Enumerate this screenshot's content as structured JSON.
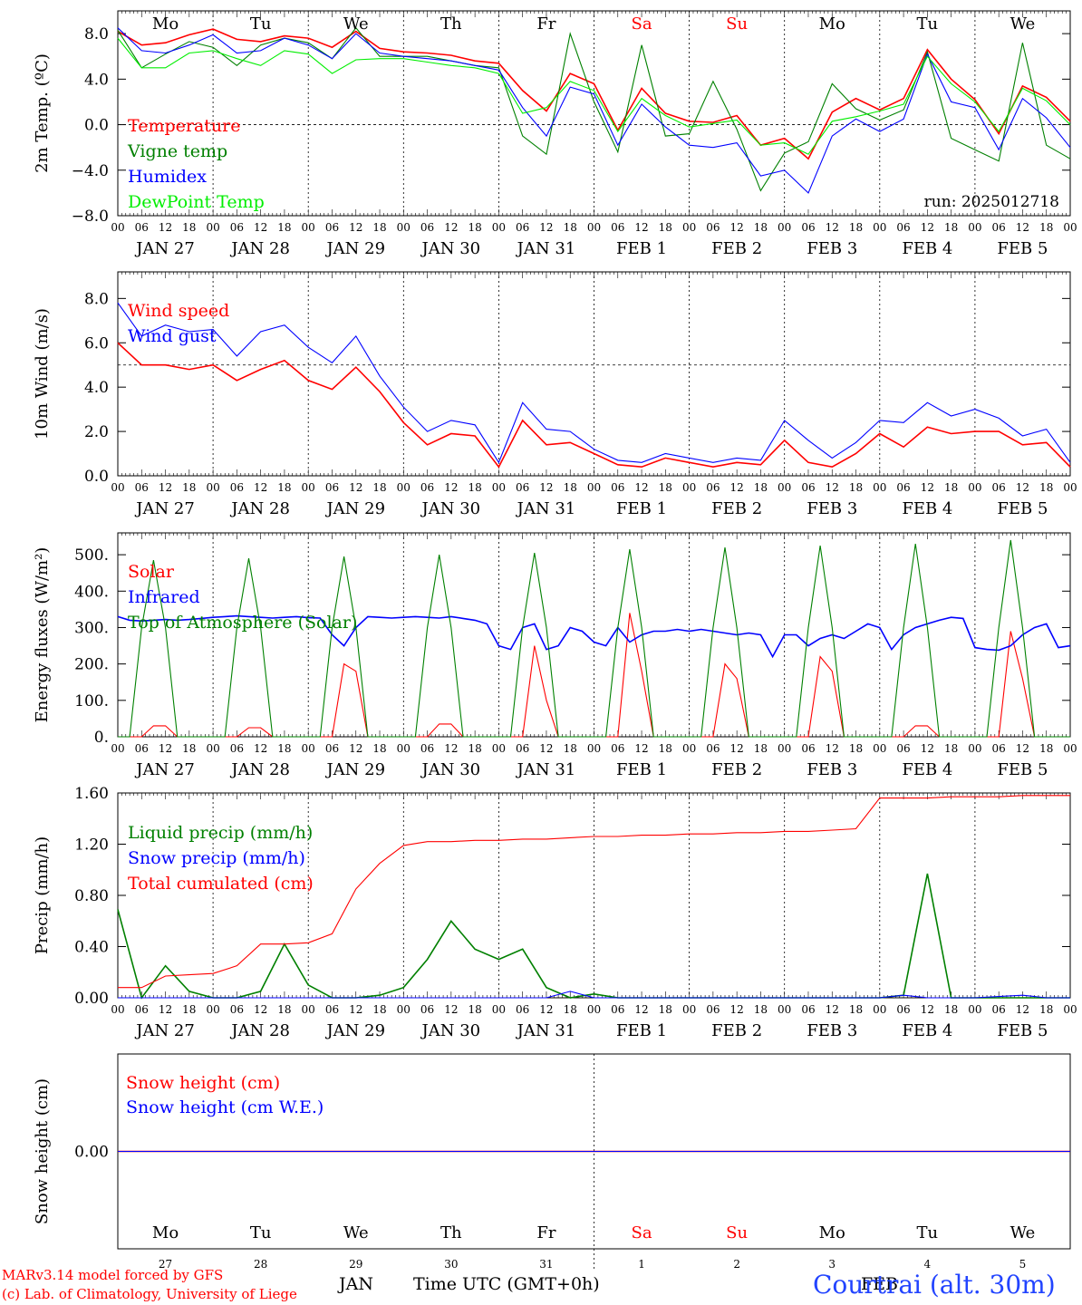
{
  "days": {
    "weekdays": [
      "Mo",
      "Tu",
      "We",
      "Th",
      "Fr",
      "Sa",
      "Su",
      "Mo",
      "Tu",
      "We"
    ],
    "weekday_colors": [
      "#000000",
      "#000000",
      "#000000",
      "#000000",
      "#000000",
      "#ff0000",
      "#ff0000",
      "#000000",
      "#000000",
      "#000000"
    ],
    "dates": [
      "JAN 27",
      "JAN 28",
      "JAN 29",
      "JAN 30",
      "JAN 31",
      "FEB  1",
      "FEB  2",
      "FEB  3",
      "FEB  4",
      "FEB  5"
    ],
    "day_numbers": [
      "27",
      "28",
      "29",
      "30",
      "31",
      "1",
      "2",
      "3",
      "4",
      "5"
    ],
    "hour_ticks": [
      "00",
      "06",
      "12",
      "18"
    ],
    "final_hour": "00"
  },
  "chart_data": [
    {
      "id": "temp",
      "type": "line",
      "ylabel": "2m Temp. (ºC)",
      "ylim": [
        -8,
        10
      ],
      "yticks": [
        "−8.0",
        "−4.0",
        "0.0",
        "4.0",
        "8.0"
      ],
      "ytick_values": [
        -8,
        -4,
        0,
        4,
        8
      ],
      "ref_line": 0,
      "annotation": "run: 2025012718",
      "x_hours_per_point": 6,
      "series": [
        {
          "name": "Temperature",
          "color": "#ff0000",
          "values": [
            8.2,
            7.0,
            7.2,
            7.9,
            8.4,
            7.5,
            7.3,
            7.8,
            7.6,
            6.8,
            8.2,
            6.7,
            6.4,
            6.3,
            6.1,
            5.6,
            5.4,
            3.0,
            1.2,
            4.5,
            3.6,
            -0.5,
            3.2,
            1.0,
            0.3,
            0.2,
            0.8,
            -1.8,
            -1.2,
            -3.0,
            1.1,
            2.3,
            1.3,
            2.3,
            6.6,
            4.0,
            2.2,
            -0.8,
            3.4,
            2.4,
            0.3
          ]
        },
        {
          "name": "Vigne temp",
          "color": "#008000",
          "values": [
            8.3,
            5.0,
            6.2,
            7.3,
            6.8,
            5.2,
            7.0,
            7.6,
            7.2,
            5.8,
            8.5,
            6.0,
            6.0,
            6.0,
            5.6,
            5.2,
            5.0,
            -1.0,
            -2.6,
            8.0,
            2.0,
            -2.4,
            7.0,
            -1.0,
            -0.8,
            3.8,
            -0.4,
            -5.8,
            -2.5,
            -1.5,
            3.6,
            1.4,
            0.4,
            1.3,
            6.4,
            -1.2,
            -2.2,
            -3.2,
            7.2,
            -1.8,
            -3.0
          ]
        },
        {
          "name": "Humidex",
          "color": "#0000ff",
          "values": [
            8.5,
            6.5,
            6.3,
            7.0,
            7.9,
            6.3,
            6.5,
            7.6,
            7.0,
            5.8,
            8.0,
            6.3,
            6.0,
            5.8,
            5.6,
            5.2,
            4.8,
            1.5,
            -1.0,
            3.3,
            2.7,
            -1.8,
            1.8,
            -0.2,
            -1.8,
            -2.0,
            -1.6,
            -4.5,
            -4.0,
            -6.0,
            -1.0,
            0.5,
            -0.6,
            0.5,
            6.2,
            2.0,
            1.5,
            -2.2,
            2.3,
            0.6,
            -2.0
          ]
        },
        {
          "name": "DewPoint Temp",
          "color": "#00ee00",
          "values": [
            7.6,
            5.0,
            5.0,
            6.3,
            6.5,
            5.8,
            5.2,
            6.5,
            6.2,
            4.5,
            5.7,
            5.8,
            5.8,
            5.5,
            5.2,
            5.0,
            4.5,
            1.0,
            1.5,
            3.8,
            3.0,
            -0.6,
            2.3,
            0.8,
            -0.2,
            0.1,
            0.4,
            -1.8,
            -1.6,
            -2.6,
            0.3,
            0.7,
            1.2,
            1.8,
            6.0,
            3.6,
            2.0,
            -0.6,
            3.2,
            2.1,
            0.0
          ]
        }
      ]
    },
    {
      "id": "wind",
      "type": "line",
      "ylabel": "10m Wind (m/s)",
      "ylim": [
        0,
        9.2
      ],
      "yticks": [
        "0.0",
        "2.0",
        "4.0",
        "6.0",
        "8.0"
      ],
      "ytick_values": [
        0,
        2,
        4,
        6,
        8
      ],
      "ref_line": 5,
      "x_hours_per_point": 6,
      "series": [
        {
          "name": "Wind speed",
          "color": "#ff0000",
          "values": [
            6.0,
            5.0,
            5.0,
            4.8,
            5.0,
            4.3,
            4.8,
            5.2,
            4.3,
            3.9,
            4.9,
            3.8,
            2.4,
            1.4,
            1.9,
            1.8,
            0.4,
            2.5,
            1.4,
            1.5,
            1.0,
            0.5,
            0.4,
            0.8,
            0.6,
            0.4,
            0.6,
            0.5,
            1.6,
            0.6,
            0.4,
            1.0,
            1.9,
            1.3,
            2.2,
            1.9,
            2.0,
            2.0,
            1.4,
            1.5,
            0.4
          ]
        },
        {
          "name": "Wind gust",
          "color": "#0000ff",
          "values": [
            7.8,
            6.3,
            6.8,
            6.5,
            6.6,
            5.4,
            6.5,
            6.8,
            5.8,
            5.1,
            6.3,
            4.5,
            3.1,
            2.0,
            2.5,
            2.3,
            0.6,
            3.3,
            2.1,
            2.0,
            1.2,
            0.7,
            0.6,
            1.0,
            0.8,
            0.6,
            0.8,
            0.7,
            2.5,
            1.6,
            0.8,
            1.5,
            2.5,
            2.4,
            3.3,
            2.7,
            3.0,
            2.6,
            1.8,
            2.1,
            0.6
          ]
        }
      ]
    },
    {
      "id": "flux",
      "type": "line",
      "ylabel": "Energy fluxes (W/m²)",
      "ylim": [
        0,
        560
      ],
      "yticks": [
        "0.",
        "100.",
        "200.",
        "300.",
        "400.",
        "500."
      ],
      "ytick_values": [
        0,
        100,
        200,
        300,
        400,
        500
      ],
      "x_hours_per_point": 3,
      "series": [
        {
          "name": "Solar",
          "color": "#ff0000",
          "values": [
            0,
            0,
            0,
            30,
            30,
            0,
            0,
            0,
            0,
            0,
            0,
            25,
            25,
            0,
            0,
            0,
            0,
            0,
            0,
            200,
            180,
            0,
            0,
            0,
            0,
            0,
            0,
            35,
            35,
            0,
            0,
            0,
            0,
            0,
            0,
            250,
            100,
            0,
            0,
            0,
            0,
            0,
            0,
            340,
            180,
            0,
            0,
            0,
            0,
            0,
            0,
            200,
            160,
            0,
            0,
            0,
            0,
            0,
            0,
            220,
            180,
            0,
            0,
            0,
            0,
            0,
            0,
            30,
            30,
            0,
            0,
            0,
            0,
            0,
            0,
            290,
            160,
            0,
            0,
            0,
            0
          ]
        },
        {
          "name": "Infrared",
          "color": "#0000ff",
          "values": [
            330,
            320,
            318,
            320,
            322,
            320,
            322,
            325,
            328,
            330,
            332,
            330,
            328,
            326,
            328,
            330,
            327,
            326,
            280,
            250,
            300,
            330,
            328,
            326,
            328,
            330,
            328,
            326,
            330,
            325,
            320,
            310,
            250,
            240,
            300,
            310,
            240,
            250,
            300,
            290,
            260,
            250,
            300,
            260,
            280,
            290,
            290,
            295,
            290,
            295,
            290,
            285,
            280,
            285,
            280,
            220,
            280,
            280,
            250,
            270,
            280,
            270,
            290,
            310,
            300,
            240,
            280,
            300,
            310,
            320,
            328,
            325,
            245,
            240,
            238,
            250,
            280,
            300,
            310,
            245,
            250
          ]
        },
        {
          "name": "Top of Atmosphere (Solar)",
          "color": "#008000",
          "values": [
            0,
            0,
            300,
            485,
            300,
            0,
            0,
            0,
            0,
            0,
            300,
            490,
            300,
            0,
            0,
            0,
            0,
            0,
            300,
            495,
            300,
            0,
            0,
            0,
            0,
            0,
            300,
            500,
            300,
            0,
            0,
            0,
            0,
            0,
            300,
            505,
            300,
            0,
            0,
            0,
            0,
            0,
            300,
            515,
            300,
            0,
            0,
            0,
            0,
            0,
            300,
            520,
            300,
            0,
            0,
            0,
            0,
            0,
            300,
            525,
            300,
            0,
            0,
            0,
            0,
            0,
            300,
            530,
            300,
            0,
            0,
            0,
            0,
            0,
            300,
            540,
            300,
            0,
            0,
            0,
            0
          ]
        }
      ]
    },
    {
      "id": "precip",
      "type": "line",
      "ylabel": "Precip (mm/h)",
      "ylim": [
        0,
        1.6
      ],
      "yticks": [
        "0.00",
        "0.40",
        "0.80",
        "1.20",
        "1.60"
      ],
      "ytick_values": [
        0,
        0.4,
        0.8,
        1.2,
        1.6
      ],
      "x_hours_per_point": 6,
      "series": [
        {
          "name": "Liquid precip (mm/h)",
          "color": "#008000",
          "values": [
            0.69,
            0.0,
            0.25,
            0.05,
            0.0,
            0.0,
            0.05,
            0.42,
            0.1,
            0.0,
            0.0,
            0.02,
            0.08,
            0.3,
            0.6,
            0.38,
            0.3,
            0.38,
            0.08,
            0.0,
            0.03,
            0.0,
            0.0,
            0.0,
            0.0,
            0.0,
            0.0,
            0.0,
            0.0,
            0.0,
            0.0,
            0.0,
            0.0,
            0.02,
            0.97,
            0.0,
            0.0,
            0.0,
            0.0,
            0.0,
            0.0
          ]
        },
        {
          "name": "Snow precip (mm/h)",
          "color": "#0000ff",
          "values": [
            0,
            0,
            0,
            0,
            0,
            0,
            0,
            0,
            0,
            0,
            0,
            0,
            0,
            0,
            0,
            0,
            0,
            0,
            0,
            0.05,
            0,
            0,
            0,
            0,
            0,
            0,
            0,
            0,
            0,
            0,
            0,
            0,
            0,
            0.02,
            0,
            0,
            0,
            0.01,
            0.02,
            0,
            0
          ]
        },
        {
          "name": "Total cumulated (cm)",
          "color": "#ff0000",
          "values": [
            0.08,
            0.08,
            0.17,
            0.18,
            0.19,
            0.25,
            0.42,
            0.42,
            0.43,
            0.5,
            0.85,
            1.05,
            1.19,
            1.22,
            1.22,
            1.23,
            1.23,
            1.24,
            1.24,
            1.25,
            1.26,
            1.26,
            1.27,
            1.27,
            1.28,
            1.28,
            1.29,
            1.29,
            1.3,
            1.3,
            1.31,
            1.32,
            1.56,
            1.56,
            1.56,
            1.57,
            1.57,
            1.57,
            1.58,
            1.58,
            1.58
          ]
        }
      ]
    },
    {
      "id": "snow",
      "type": "line",
      "ylabel": "Snow height (cm)",
      "ylim": [
        -1,
        1
      ],
      "yticks": [
        "0.00"
      ],
      "ytick_values": [
        0
      ],
      "x_hours_per_point": 6,
      "series": [
        {
          "name": "Snow height (cm)",
          "color": "#ff0000",
          "values": [
            0,
            0
          ]
        },
        {
          "name": "Snow height (cm W.E.)",
          "color": "#0000ff",
          "values": [
            0,
            0
          ]
        }
      ]
    }
  ],
  "bottom_axis": {
    "month_left": "JAN",
    "month_right": "FEB",
    "xlabel": "Time UTC (GMT+0h)"
  },
  "footer": {
    "credit1": "MARv3.14 model forced by GFS",
    "credit2": "(c) Lab. of Climatology, University of Liege",
    "station": "Courtrai (alt. 30m)"
  }
}
